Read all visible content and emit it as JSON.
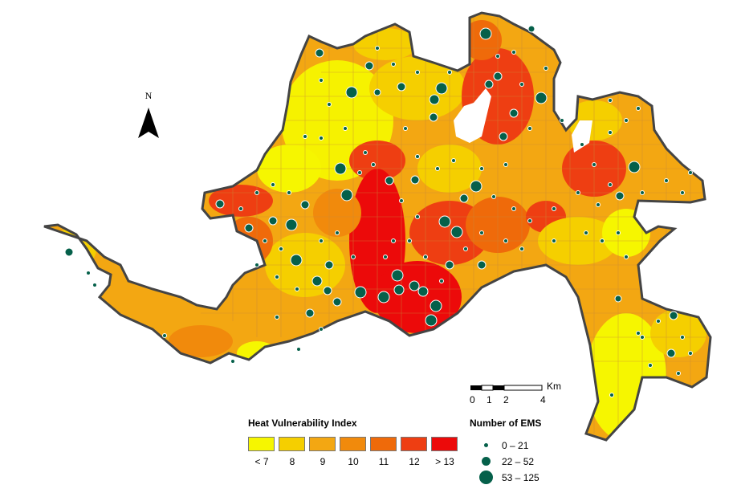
{
  "north_arrow": {
    "label": "N"
  },
  "scale_bar": {
    "unit": "Km",
    "ticks": [
      "0",
      "1",
      "2",
      "4"
    ]
  },
  "hvi_legend": {
    "title": "Heat Vulnerability Index",
    "classes": [
      {
        "label": "< 7",
        "color": "#f6f600"
      },
      {
        "label": "8",
        "color": "#f5cf00"
      },
      {
        "label": "9",
        "color": "#f3a712"
      },
      {
        "label": "10",
        "color": "#f18a0c"
      },
      {
        "label": "11",
        "color": "#ef6a0a"
      },
      {
        "label": "12",
        "color": "#ee3e12"
      },
      {
        "label": "> 13",
        "color": "#ec0a0a"
      }
    ]
  },
  "ems_legend": {
    "title": "Number of EMS",
    "classes": [
      {
        "label": "0 – 21",
        "size": "small"
      },
      {
        "label": "22 – 52",
        "size": "medium"
      },
      {
        "label": "53 – 125",
        "size": "large"
      }
    ],
    "dot_color": "#05604a"
  }
}
